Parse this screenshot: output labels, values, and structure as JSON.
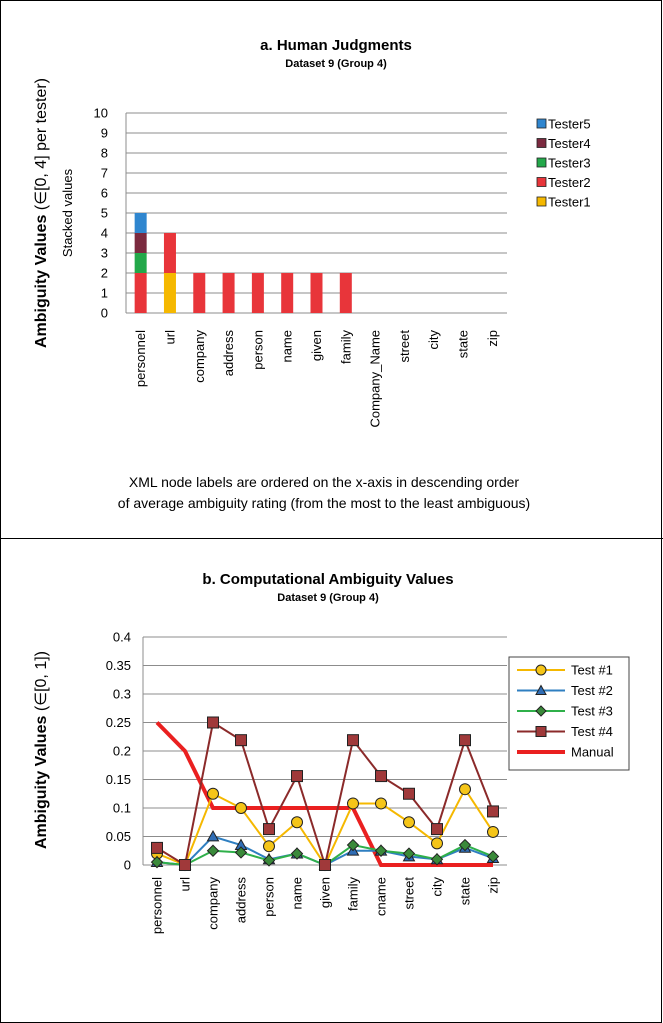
{
  "chart_data": [
    {
      "type": "bar",
      "stacked": true,
      "title": "a. Human Judgments",
      "subtitle": "Dataset 9 (Group 4)",
      "ylabel_bold": "Ambiguity Values",
      "ylabel_rest": " (∈[0, 4] per tester)",
      "ylabel2": "Stacked values",
      "ylim": [
        0,
        10
      ],
      "yticks": [
        "0",
        "1",
        "2",
        "3",
        "4",
        "5",
        "6",
        "7",
        "8",
        "9",
        "10"
      ],
      "grid": true,
      "legend_position": "right",
      "categories": [
        "personnel",
        "url",
        "company",
        "address",
        "person",
        "name",
        "given",
        "family",
        "Company_Name",
        "street",
        "city",
        "state",
        "zip"
      ],
      "series": [
        {
          "name": "Tester1",
          "color": "#f5b800",
          "values": [
            0,
            2,
            0,
            0,
            0,
            0,
            0,
            0,
            0,
            0,
            0,
            0,
            0
          ]
        },
        {
          "name": "Tester2",
          "color": "#e8353a",
          "values": [
            2,
            2,
            2,
            2,
            2,
            2,
            2,
            2,
            0,
            0,
            0,
            0,
            0
          ]
        },
        {
          "name": "Tester3",
          "color": "#23a84a",
          "values": [
            1,
            0,
            0,
            0,
            0,
            0,
            0,
            0,
            0,
            0,
            0,
            0,
            0
          ]
        },
        {
          "name": "Tester4",
          "color": "#7b2a3f",
          "values": [
            1,
            0,
            0,
            0,
            0,
            0,
            0,
            0,
            0,
            0,
            0,
            0,
            0
          ]
        },
        {
          "name": "Tester5",
          "color": "#2f86cf",
          "values": [
            1,
            0,
            0,
            0,
            0,
            0,
            0,
            0,
            0,
            0,
            0,
            0,
            0
          ]
        }
      ],
      "note_line1": "XML node labels are ordered on the x-axis in descending order",
      "note_line2": "of average ambiguity rating (from the most to the least ambiguous)"
    },
    {
      "type": "line",
      "title": "b. Computational Ambiguity Values",
      "subtitle": "Dataset 9 (Group 4)",
      "ylabel_bold": "Ambiguity Values",
      "ylabel_rest": " (∈[0, 1])",
      "ylim": [
        0,
        0.4
      ],
      "yticks": [
        "0",
        "0.05",
        "0.1",
        "0.15",
        "0.2",
        "0.25",
        "0.3",
        "0.35",
        "0.4"
      ],
      "grid": true,
      "legend_position": "right",
      "categories": [
        "personnel",
        "url",
        "company",
        "address",
        "person",
        "name",
        "given",
        "family",
        "cname",
        "street",
        "city",
        "state",
        "zip"
      ],
      "series": [
        {
          "name": "Test #1",
          "color": "#f5b800",
          "marker": "circle",
          "fill": "#f5c518",
          "values": [
            0.02,
            0,
            0.125,
            0.1,
            0.033,
            0.075,
            0,
            0.108,
            0.108,
            0.075,
            0.038,
            0.133,
            0.058
          ]
        },
        {
          "name": "Test #2",
          "color": "#2f7fc1",
          "marker": "triangle",
          "fill": "#2f6db5",
          "values": [
            0.005,
            0,
            0.05,
            0.035,
            0.01,
            0.02,
            0,
            0.025,
            0.025,
            0.015,
            0.01,
            0.03,
            0.012
          ]
        },
        {
          "name": "Test #3",
          "color": "#2fb04a",
          "marker": "diamond",
          "fill": "#3a8a3a",
          "values": [
            0.005,
            0,
            0.025,
            0.022,
            0.008,
            0.02,
            0,
            0.035,
            0.025,
            0.02,
            0.01,
            0.035,
            0.015
          ]
        },
        {
          "name": "Test #4",
          "color": "#8b2a2a",
          "marker": "square",
          "fill": "#a0393a",
          "values": [
            0.03,
            0,
            0.25,
            0.219,
            0.063,
            0.156,
            0,
            0.219,
            0.156,
            0.125,
            0.063,
            0.219,
            0.094
          ]
        },
        {
          "name": "Manual",
          "color": "#ea2020",
          "marker": "none",
          "fill": "none",
          "values": [
            0.25,
            0.2,
            0.1,
            0.1,
            0.1,
            0.1,
            0.1,
            0.1,
            0,
            0,
            0,
            0,
            0
          ]
        }
      ]
    }
  ]
}
